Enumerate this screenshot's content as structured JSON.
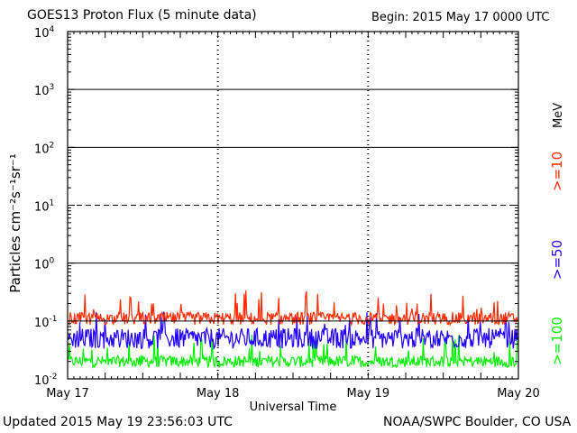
{
  "chart_data": {
    "type": "line",
    "title": "GOES13 Proton Flux (5 minute data)",
    "begin_label": "Begin: 2015 May 17 0000 UTC",
    "xlabel": "Universal Time",
    "ylabel": "Particles cm⁻²s⁻¹sr⁻¹",
    "y_scale": "log",
    "ylim": [
      0.01,
      10000
    ],
    "xlim": [
      "May 17",
      "May 20"
    ],
    "x_ticks": [
      "May 17",
      "May 18",
      "May 19",
      "May 20"
    ],
    "y_ticks": [
      {
        "base": "10",
        "exp": "4"
      },
      {
        "base": "10",
        "exp": "3"
      },
      {
        "base": "10",
        "exp": "2"
      },
      {
        "base": "10",
        "exp": "1"
      },
      {
        "base": "10",
        "exp": "0"
      },
      {
        "base": "10",
        "exp": "-1"
      },
      {
        "base": "10",
        "exp": "-2"
      }
    ],
    "threshold_line": 10,
    "grid": true,
    "unit_label": "MeV",
    "series": [
      {
        "name": ">=10",
        "color": "#ff2a00",
        "typical": 0.11,
        "range": [
          0.08,
          0.35
        ]
      },
      {
        "name": ">=50",
        "color": "#2200ff",
        "typical": 0.05,
        "range": [
          0.03,
          0.15
        ]
      },
      {
        "name": ">=100",
        "color": "#00ee00",
        "typical": 0.02,
        "range": [
          0.015,
          0.06
        ]
      }
    ]
  },
  "footer": {
    "updated": "Updated 2015 May 19 23:56:03 UTC",
    "source": "NOAA/SWPC Boulder, CO USA"
  }
}
